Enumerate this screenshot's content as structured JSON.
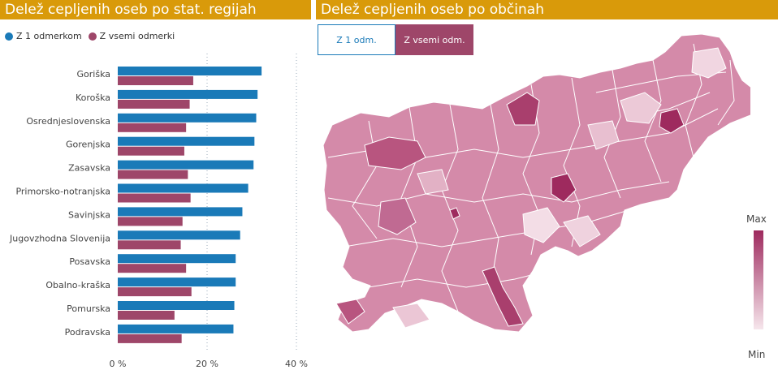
{
  "left_panel": {
    "title": "Delež cepljenih oseb po stat. regijah",
    "legend": [
      {
        "label": "Z 1 odmerkom",
        "color": "#1a7ab8"
      },
      {
        "label": "Z vsemi odmerki",
        "color": "#9e4669"
      }
    ]
  },
  "right_panel": {
    "title": "Delež cepljenih oseb po občinah",
    "toggle": {
      "option_1": "Z 1 odm.",
      "option_2": "Z vsemi odm.",
      "selected": "Z vsemi odm."
    },
    "scale": {
      "max_label": "Max",
      "min_label": "Min",
      "max_color": "#9e2a5e",
      "min_color": "#f6e6ec"
    }
  },
  "chart_data": {
    "type": "bar",
    "orientation": "horizontal",
    "categories": [
      "Goriška",
      "Koroška",
      "Osrednjeslovenska",
      "Gorenjska",
      "Zasavska",
      "Primorsko-notranjska",
      "Savinjska",
      "Jugovzhodna Slovenija",
      "Posavska",
      "Obalno-kraška",
      "Pomurska",
      "Podravska"
    ],
    "series": [
      {
        "name": "Z 1 odmerkom",
        "color": "#1a7ab8",
        "values": [
          32.2,
          31.3,
          31.0,
          30.6,
          30.4,
          29.2,
          27.9,
          27.4,
          26.4,
          26.4,
          26.1,
          25.9
        ]
      },
      {
        "name": "Z vsemi odmerki",
        "color": "#9e4669",
        "values": [
          16.9,
          16.1,
          15.3,
          14.9,
          15.7,
          16.3,
          14.5,
          14.1,
          15.3,
          16.5,
          12.7,
          14.3
        ]
      }
    ],
    "xlim": [
      0,
      40
    ],
    "ticks": [
      "0 %",
      "20 %",
      "40 %"
    ],
    "tick_values": [
      0,
      20,
      40
    ],
    "grid": "vertical dotted"
  }
}
